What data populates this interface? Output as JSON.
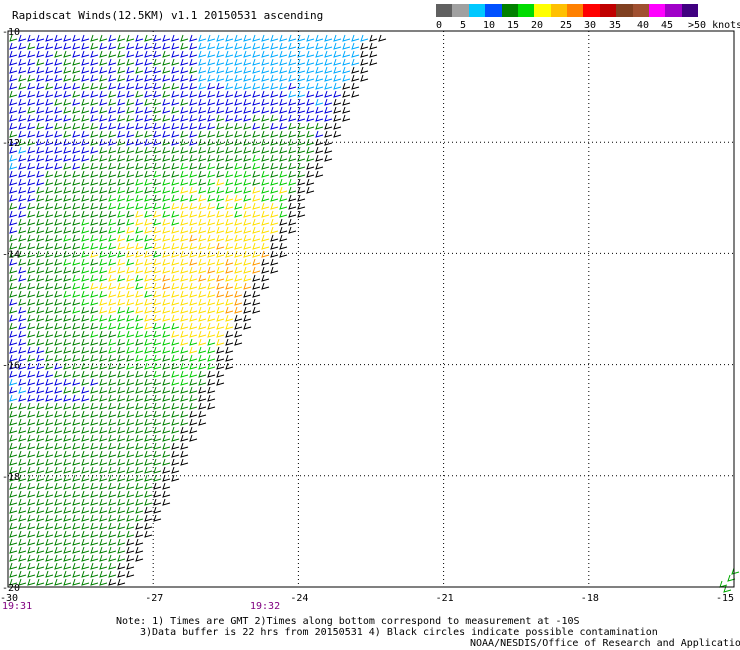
{
  "title": "Rapidscat Winds(12.5KM) v1.1 20150531 ascending",
  "legend": {
    "labels": [
      "0",
      "5",
      "10",
      "15",
      "20",
      "25",
      "30",
      "35",
      "40",
      "45",
      ">50 knots"
    ],
    "colors": [
      "#606060",
      "#a0a0a0",
      "#00c8ff",
      "#0050ff",
      "#008000",
      "#00dc00",
      "#ffff00",
      "#ffc000",
      "#ff8000",
      "#ff0000",
      "#c00000",
      "#804020",
      "#a05030",
      "#ff00ff",
      "#a000c8",
      "#400080"
    ]
  },
  "axes": {
    "lat_ticks": [
      "-10",
      "-12",
      "-14",
      "-16",
      "-18",
      "-20"
    ],
    "lon_ticks": [
      "-30",
      "-27",
      "-24",
      "-21",
      "-18",
      "-15"
    ],
    "lat_range": [
      -20,
      -10
    ],
    "lon_range": [
      -30,
      -15
    ]
  },
  "times": [
    "19:31",
    "19:32"
  ],
  "notes": {
    "line1": "Note: 1) Times are GMT 2)Times along bottom correspond to measurement at -10S",
    "line2": "3)Data buffer is 22 hrs from 20150531 4) Black circles indicate possible contamination",
    "line3": "NOAA/NESDIS/Office of Research and Applications"
  }
}
